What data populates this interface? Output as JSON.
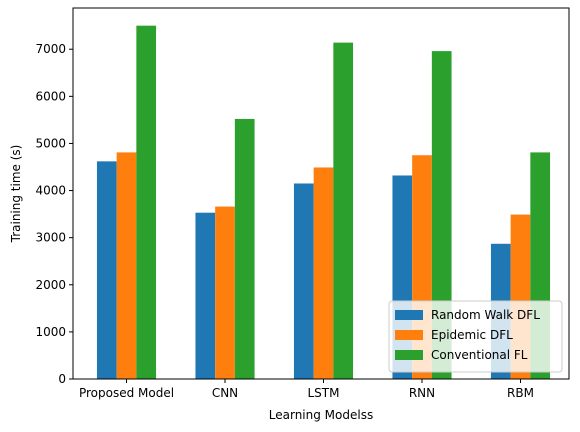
{
  "chart_data": {
    "type": "bar",
    "title": "",
    "xlabel": "Learning Modelss",
    "ylabel": "Training time (s)",
    "categories": [
      "Proposed Model",
      "CNN",
      "LSTM",
      "RNN",
      "RBM"
    ],
    "series": [
      {
        "name": "Random Walk DFL",
        "color": "#1f77b4",
        "values": [
          4620,
          3530,
          4150,
          4320,
          2870
        ]
      },
      {
        "name": "Epidemic DFL",
        "color": "#ff7f0e",
        "values": [
          4810,
          3660,
          4490,
          4750,
          3490
        ]
      },
      {
        "name": "Conventional FL",
        "color": "#2ca02c",
        "values": [
          7500,
          5520,
          7140,
          6960,
          4810
        ]
      }
    ],
    "ylim": [
      0,
      7875
    ],
    "yticks": [
      0,
      1000,
      2000,
      3000,
      4000,
      5000,
      6000,
      7000
    ],
    "grid": false,
    "legend_position": "lower-right"
  }
}
